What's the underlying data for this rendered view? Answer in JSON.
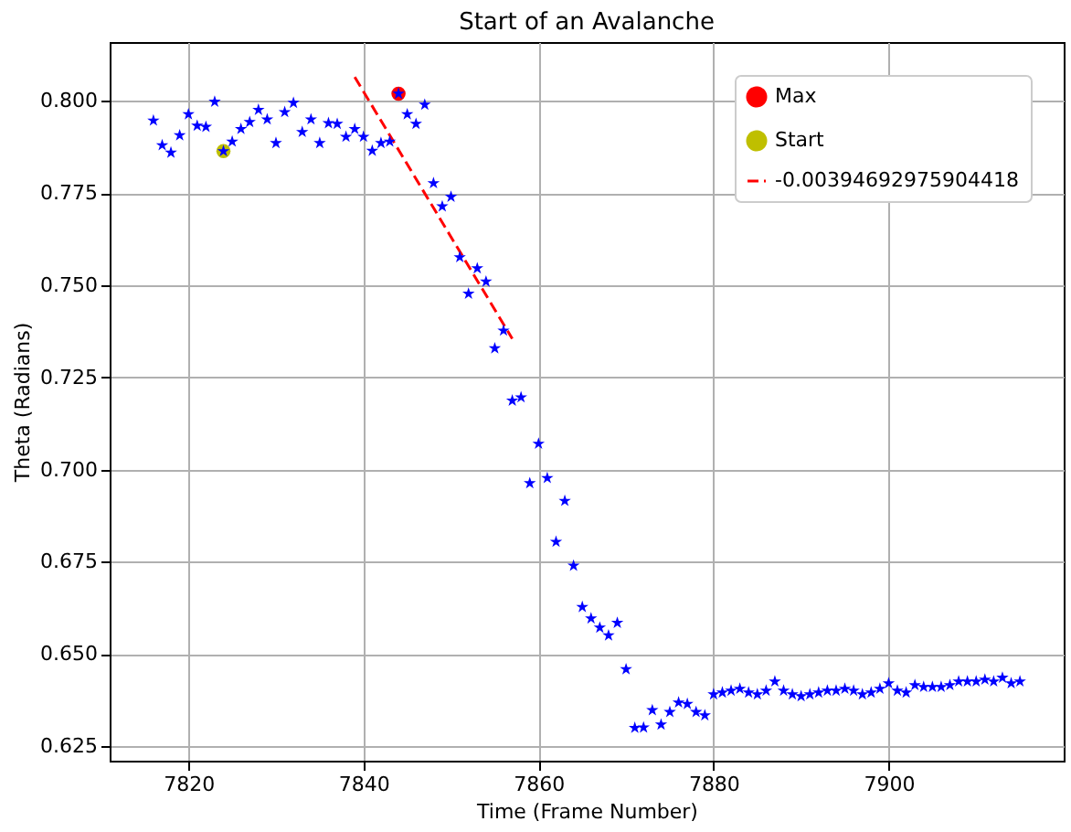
{
  "chart_data": {
    "type": "scatter",
    "title": "Start of an Avalanche",
    "xlabel": "Time (Frame Number)",
    "ylabel": "Theta (Radians)",
    "xlim": [
      7811,
      7920
    ],
    "ylim": [
      0.621,
      0.816
    ],
    "xticks": [
      7820,
      7840,
      7860,
      7880,
      7900
    ],
    "yticks": [
      0.625,
      {
        "value": 0.65,
        "label": "0.650"
      },
      0.675,
      {
        "value": 0.7,
        "label": "0.700"
      },
      0.725,
      {
        "value": 0.75,
        "label": "0.750"
      },
      0.775,
      {
        "value": 0.8,
        "label": "0.800"
      }
    ],
    "grid": true,
    "legend": "top right",
    "series": [
      {
        "marker": "star",
        "color": "#0000ff",
        "x": [
          7816,
          7817,
          7818,
          7819,
          7820,
          7821,
          7822,
          7823,
          7824,
          7825,
          7826,
          7827,
          7828,
          7829,
          7830,
          7831,
          7832,
          7833,
          7834,
          7835,
          7836,
          7837,
          7838,
          7839,
          7840,
          7841,
          7842,
          7843,
          7844,
          7845,
          7846,
          7847,
          7848,
          7849,
          7850,
          7851,
          7852,
          7853,
          7854,
          7855,
          7856,
          7857,
          7858,
          7859,
          7860,
          7861,
          7862,
          7863,
          7864,
          7865,
          7866,
          7867,
          7868,
          7869,
          7870,
          7871,
          7872,
          7873,
          7874,
          7875,
          7876,
          7877,
          7878,
          7879,
          7880,
          7881,
          7882,
          7883,
          7884,
          7885,
          7886,
          7887,
          7888,
          7889,
          7890,
          7891,
          7892,
          7893,
          7894,
          7895,
          7896,
          7897,
          7898,
          7899,
          7900,
          7901,
          7902,
          7903,
          7904,
          7905,
          7906,
          7907,
          7908,
          7909,
          7910,
          7911,
          7912,
          7913,
          7914,
          7915
        ],
        "values": [
          0.7947,
          0.788,
          0.786,
          0.7907,
          0.7964,
          0.7933,
          0.793,
          0.7998,
          0.7864,
          0.789,
          0.7924,
          0.7943,
          0.7976,
          0.795,
          0.7886,
          0.797,
          0.7995,
          0.7916,
          0.795,
          0.7886,
          0.794,
          0.7938,
          0.7903,
          0.7924,
          0.7903,
          0.7865,
          0.7886,
          0.789,
          0.802,
          0.7964,
          0.7938,
          0.799,
          0.7777,
          0.7714,
          0.774,
          0.7576,
          0.7477,
          0.7546,
          0.751,
          0.7329,
          0.7377,
          0.7187,
          0.7196,
          0.6963,
          0.707,
          0.6977,
          0.6804,
          0.6915,
          0.6739,
          0.6627,
          0.6596,
          0.6571,
          0.655,
          0.6584,
          0.6458,
          0.6299,
          0.63,
          0.6347,
          0.6308,
          0.6342,
          0.6368,
          0.6364,
          0.6342,
          0.6333,
          0.639,
          0.6395,
          0.64,
          0.6405,
          0.6395,
          0.639,
          0.64,
          0.6425,
          0.64,
          0.639,
          0.6385,
          0.639,
          0.6395,
          0.64,
          0.64,
          0.6405,
          0.64,
          0.639,
          0.6395,
          0.6405,
          0.642,
          0.64,
          0.6395,
          0.6415,
          0.641,
          0.641,
          0.641,
          0.6415,
          0.6425,
          0.6425,
          0.6425,
          0.643,
          0.6425,
          0.6435,
          0.642,
          0.6425
        ]
      },
      {
        "type": "scatter",
        "marker": "circle",
        "name": "Max",
        "color": "#ff0000",
        "x": [
          7844
        ],
        "values": [
          0.802
        ]
      },
      {
        "type": "scatter",
        "marker": "circle",
        "name": "Start",
        "color": "#bfbf00",
        "x": [
          7824
        ],
        "values": [
          0.7864
        ]
      },
      {
        "type": "line",
        "line_style": "dashed",
        "name": "-0.00394692975904418",
        "color": "#ff0000",
        "x": [
          7839,
          7857
        ],
        "values": [
          0.8065,
          0.7355
        ]
      }
    ]
  }
}
